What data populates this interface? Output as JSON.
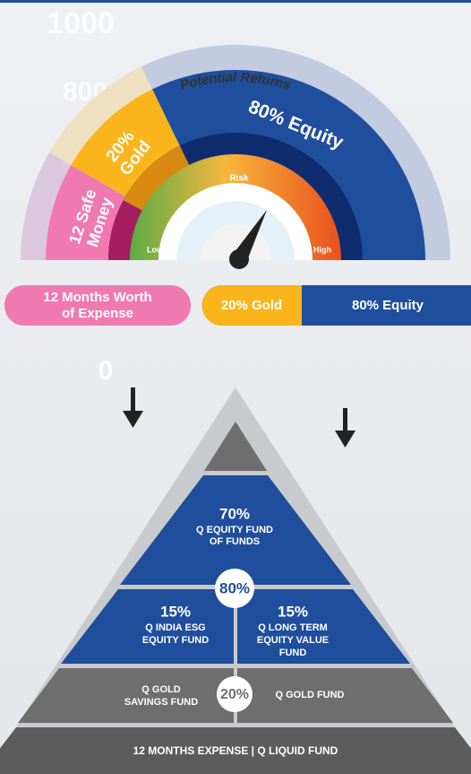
{
  "background_axis": [
    "1000",
    "800",
    "0"
  ],
  "gauge": {
    "outer_label": "Potential Returns",
    "equity": [
      "80% Equity"
    ],
    "gold": [
      "20%",
      "Gold"
    ],
    "safe": [
      "12 Safe",
      "Money"
    ],
    "risk": {
      "title": "Risk",
      "low": "Low",
      "high": "High"
    }
  },
  "allocation_bar": {
    "expense": [
      "12 Months Worth",
      "of Expense"
    ],
    "gold": "20% Gold",
    "equity": "80% Equity"
  },
  "pyramid": {
    "equity_main": {
      "percent": "70%",
      "lines": [
        "Q EQUITY FUND",
        "OF FUNDS"
      ]
    },
    "equity_badge": "80%",
    "esg": {
      "percent": "15%",
      "lines": [
        "Q INDIA ESG",
        "EQUITY FUND"
      ]
    },
    "long_term": {
      "percent": "15%",
      "lines": [
        "Q LONG TERM",
        "EQUITY VALUE",
        "FUND"
      ]
    },
    "gold_savings": [
      "Q GOLD",
      "SAVINGS FUND"
    ],
    "gold_badge": "20%",
    "gold_fund": "Q GOLD FUND",
    "base": "12 MONTHS EXPENSE | Q LIQUID FUND"
  }
}
